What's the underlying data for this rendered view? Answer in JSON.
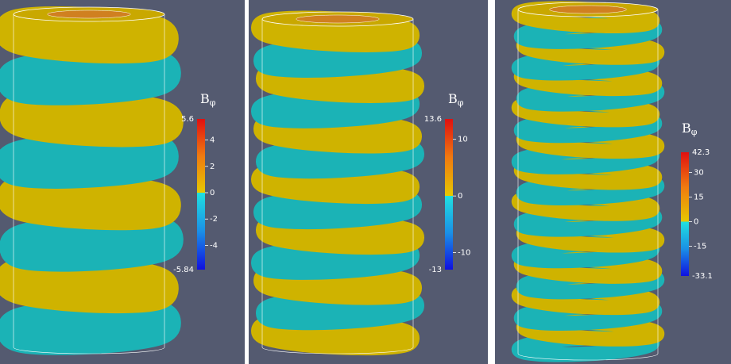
{
  "panels": [
    {
      "colorbar": {
        "title": {
          "symbol": "B",
          "subscript": "φ"
        },
        "range": [
          -5.84,
          5.6
        ],
        "ticks": [
          4,
          2,
          0,
          -2,
          -4
        ]
      }
    },
    {
      "colorbar": {
        "title": {
          "symbol": "B",
          "subscript": "φ"
        },
        "range": [
          -13,
          13.6
        ],
        "ticks": [
          10,
          0,
          -10
        ]
      }
    },
    {
      "colorbar": {
        "title": {
          "symbol": "B",
          "subscript": "φ"
        },
        "range": [
          -33.1,
          42.3
        ],
        "ticks": [
          30,
          15,
          0,
          -15
        ]
      }
    }
  ]
}
